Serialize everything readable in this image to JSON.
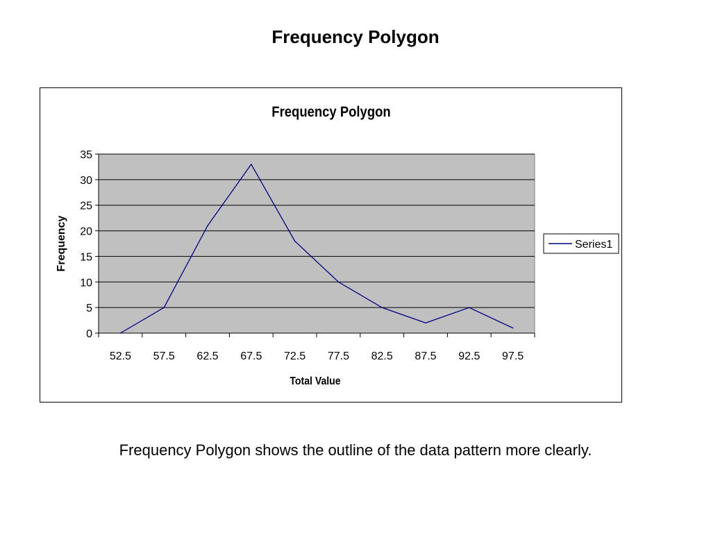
{
  "slide": {
    "title": "Frequency Polygon",
    "caption": "Frequency Polygon shows the outline of the data pattern more clearly."
  },
  "chart_data": {
    "type": "line",
    "title": "Frequency Polygon",
    "xlabel": "Total Value",
    "ylabel": "Frequency",
    "categories": [
      "52.5",
      "57.5",
      "62.5",
      "67.5",
      "72.5",
      "77.5",
      "82.5",
      "87.5",
      "92.5",
      "97.5"
    ],
    "series": [
      {
        "name": "Series1",
        "values": [
          0,
          5,
          21,
          33,
          18,
          10,
          5,
          2,
          5,
          1
        ]
      }
    ],
    "ylim": [
      0,
      35
    ],
    "yticks": [
      0,
      5,
      10,
      15,
      20,
      25,
      30,
      35
    ],
    "grid": true,
    "legend": "right",
    "colors": {
      "plot_background": "#c0c0c0",
      "series_line": "#000080",
      "gridline": "#000000"
    }
  }
}
